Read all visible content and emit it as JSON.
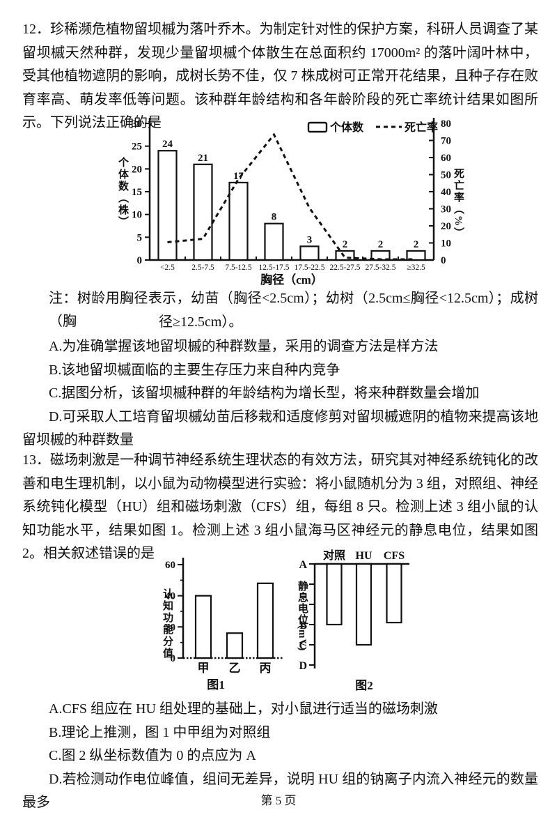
{
  "page": {
    "footer": "第 5 页"
  },
  "q12": {
    "text": "12．珍稀濒危植物留坝槭为落叶乔木。为制定针对性的保护方案，科研人员调查了某留坝槭天然种群，发现少量留坝槭个体散生在总面积约 17000m² 的落叶阔叶林中，受其他植物遮阴的影响，成树长势不佳，仅 7 株成树可正常开花结果，且种子存在败育率高、萌发率低等问题。该种群年龄结构和各年龄阶段的死亡率统计结果如图所示。下列说法正确的是",
    "note_line1": "注：树龄用胸径表示，幼苗（胸径<2.5cm）；幼树（2.5cm≤胸径<12.5cm）；成树（胸",
    "note_line2": "径≥12.5cm）。",
    "options": [
      "A.为准确掌握该地留坝槭的种群数量，采用的调查方法是样方法",
      "B.该地留坝槭面临的主要生存压力来自种内竞争",
      "C.据图分析，该留坝槭种群的年龄结构为增长型，将来种群数量会增加",
      "D.可采取人工培育留坝槭幼苗后移栽和适度修剪对留坝槭遮阴的植物来提高该地留坝槭的种群数量"
    ]
  },
  "q13": {
    "text": "13．磁场刺激是一种调节神经系统生理状态的有效方法，研究其对神经系统钝化的改善和电生理机制，以小鼠为动物模型进行实验：将小鼠随机分为 3 组，对照组、神经系统钝化模型（HU）组和磁场刺激（CFS）组，每组 8 只。检测上述 3 组小鼠的认知功能水平，结果如图 1。检测上述 3 组小鼠海马区神经元的静息电位，结果如图 2。相关叙述错误的是",
    "options": [
      "A.CFS 组应在 HU 组处理的基础上，对小鼠进行适当的磁场刺激",
      "B.理论上推测，图 1 中甲组为对照组",
      "C.图 2 纵坐标数值为 0 的点应为 A",
      "D.若检测动作电位峰值，组间无差异，说明 HU 组的钠离子内流入神经元的数量最多"
    ]
  },
  "chart_data": [
    {
      "type": "bar",
      "categories": [
        "<2.5",
        "2.5-7.5",
        "7.5-12.5",
        "12.5-17.5",
        "17.5-22.5",
        "22.5-27.5",
        "27.5-32.5",
        "≥32.5"
      ],
      "series": [
        {
          "name": "个体数",
          "type": "bar",
          "axis": "left",
          "values": [
            24,
            21,
            17,
            8,
            3,
            2,
            2,
            2
          ]
        },
        {
          "name": "死亡率",
          "type": "dashed-line",
          "axis": "right",
          "values": [
            10,
            12,
            47,
            73,
            30,
            1,
            0,
            0
          ]
        }
      ],
      "xlabel": "胸径（cm）",
      "ylabel_left": "个体数（株）",
      "ylabel_right": "死亡率（%）",
      "ylim_left": [
        0,
        30
      ],
      "yticks_left": [
        0,
        5,
        10,
        15,
        20,
        25,
        30
      ],
      "ylim_right": [
        0,
        80
      ],
      "yticks_right": [
        0,
        10,
        20,
        30,
        40,
        50,
        60,
        70,
        80
      ],
      "legend_position": "top-right-inside",
      "grid": false
    },
    {
      "type": "bar",
      "caption": "图1",
      "categories": [
        "甲",
        "乙",
        "丙"
      ],
      "values": [
        40,
        16,
        48
      ],
      "ylabel": "认知功能分值",
      "ylim": [
        0,
        60
      ],
      "yticks": [
        0,
        20,
        40,
        60
      ],
      "minor_yticks": [
        10,
        30,
        50
      ],
      "grid": false
    },
    {
      "type": "bar",
      "caption": "图2",
      "orientation": "downward-from-top-axis",
      "categories": [
        "对照",
        "HU",
        "CFS"
      ],
      "ylabel": "静息电位(mV)",
      "ytick_labels": [
        "A",
        "",
        "",
        "B",
        "C",
        "D"
      ],
      "values_in_tick_units": [
        3,
        4,
        2.9
      ],
      "grid": false
    }
  ]
}
